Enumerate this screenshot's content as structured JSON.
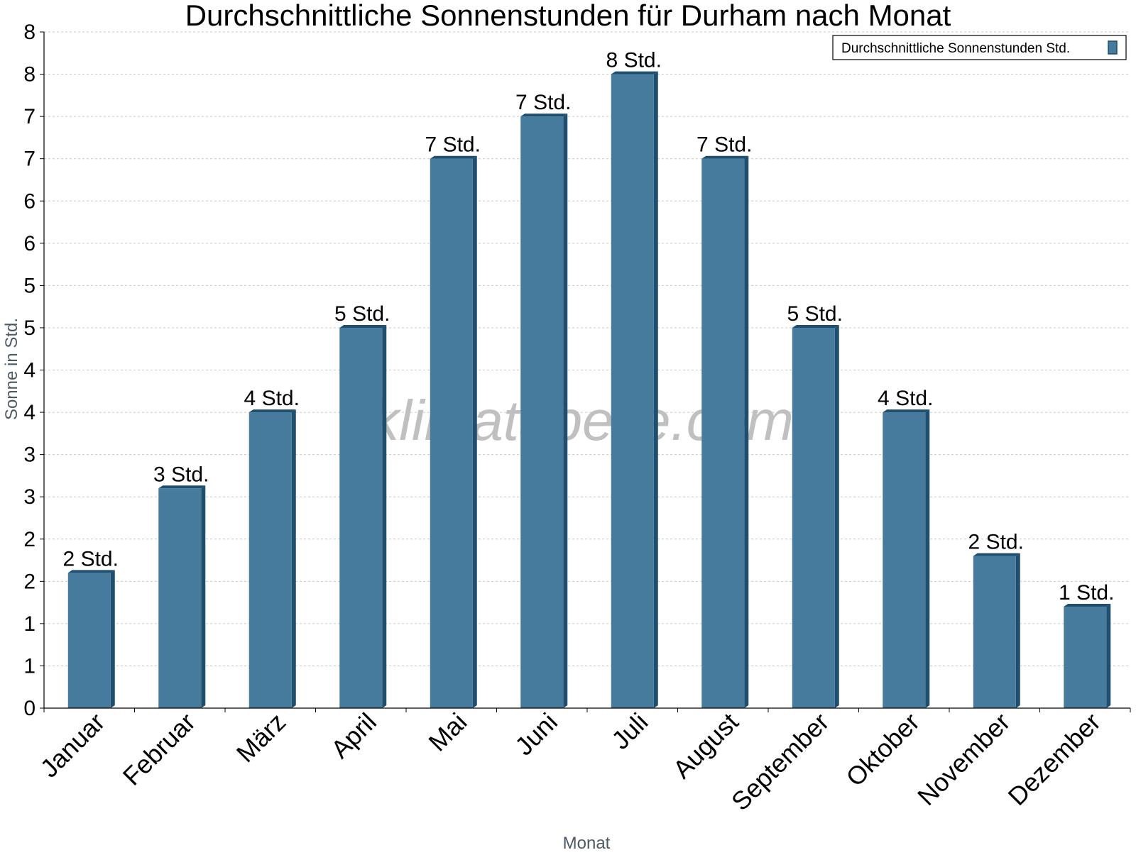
{
  "chart_data": {
    "type": "bar",
    "title": "Durchschnittliche Sonnenstunden für Durham nach Monat",
    "xlabel": "Monat",
    "ylabel": "Sonne in Std.",
    "watermark": "klimatabelle.com",
    "legend": {
      "label": "Durchschnittliche Sonnenstunden Std.",
      "position": "top-right"
    },
    "categories": [
      "Januar",
      "Februar",
      "März",
      "April",
      "Mai",
      "Juni",
      "Juli",
      "August",
      "September",
      "Oktober",
      "November",
      "Dezember"
    ],
    "series": [
      {
        "name": "Durchschnittliche Sonnenstunden Std.",
        "values": [
          1.6,
          2.6,
          3.5,
          4.5,
          6.5,
          7.0,
          7.5,
          6.5,
          4.5,
          3.5,
          1.8,
          1.2
        ],
        "data_labels": [
          "2 Std.",
          "3 Std.",
          "4 Std.",
          "5 Std.",
          "7 Std.",
          "7 Std.",
          "8 Std.",
          "7 Std.",
          "5 Std.",
          "4 Std.",
          "2 Std.",
          "1 Std."
        ]
      }
    ],
    "ylim": [
      0,
      8
    ],
    "ytick_values": [
      0,
      0.5,
      1,
      1.5,
      2,
      2.5,
      3,
      3.5,
      4,
      4.5,
      5,
      5.5,
      6,
      6.5,
      7,
      7.5,
      8
    ],
    "ytick_labels": [
      "0",
      "1",
      "1",
      "2",
      "2",
      "3",
      "3",
      "4",
      "4",
      "5",
      "5",
      "6",
      "6",
      "7",
      "7",
      "8",
      "8"
    ],
    "grid": true,
    "colors": {
      "bar": "#467b9d",
      "bar_side": "#1f4e6e",
      "grid": "#c8c8c8",
      "axis_label": "#4d5a66",
      "watermark": "#c0c0c0"
    }
  }
}
